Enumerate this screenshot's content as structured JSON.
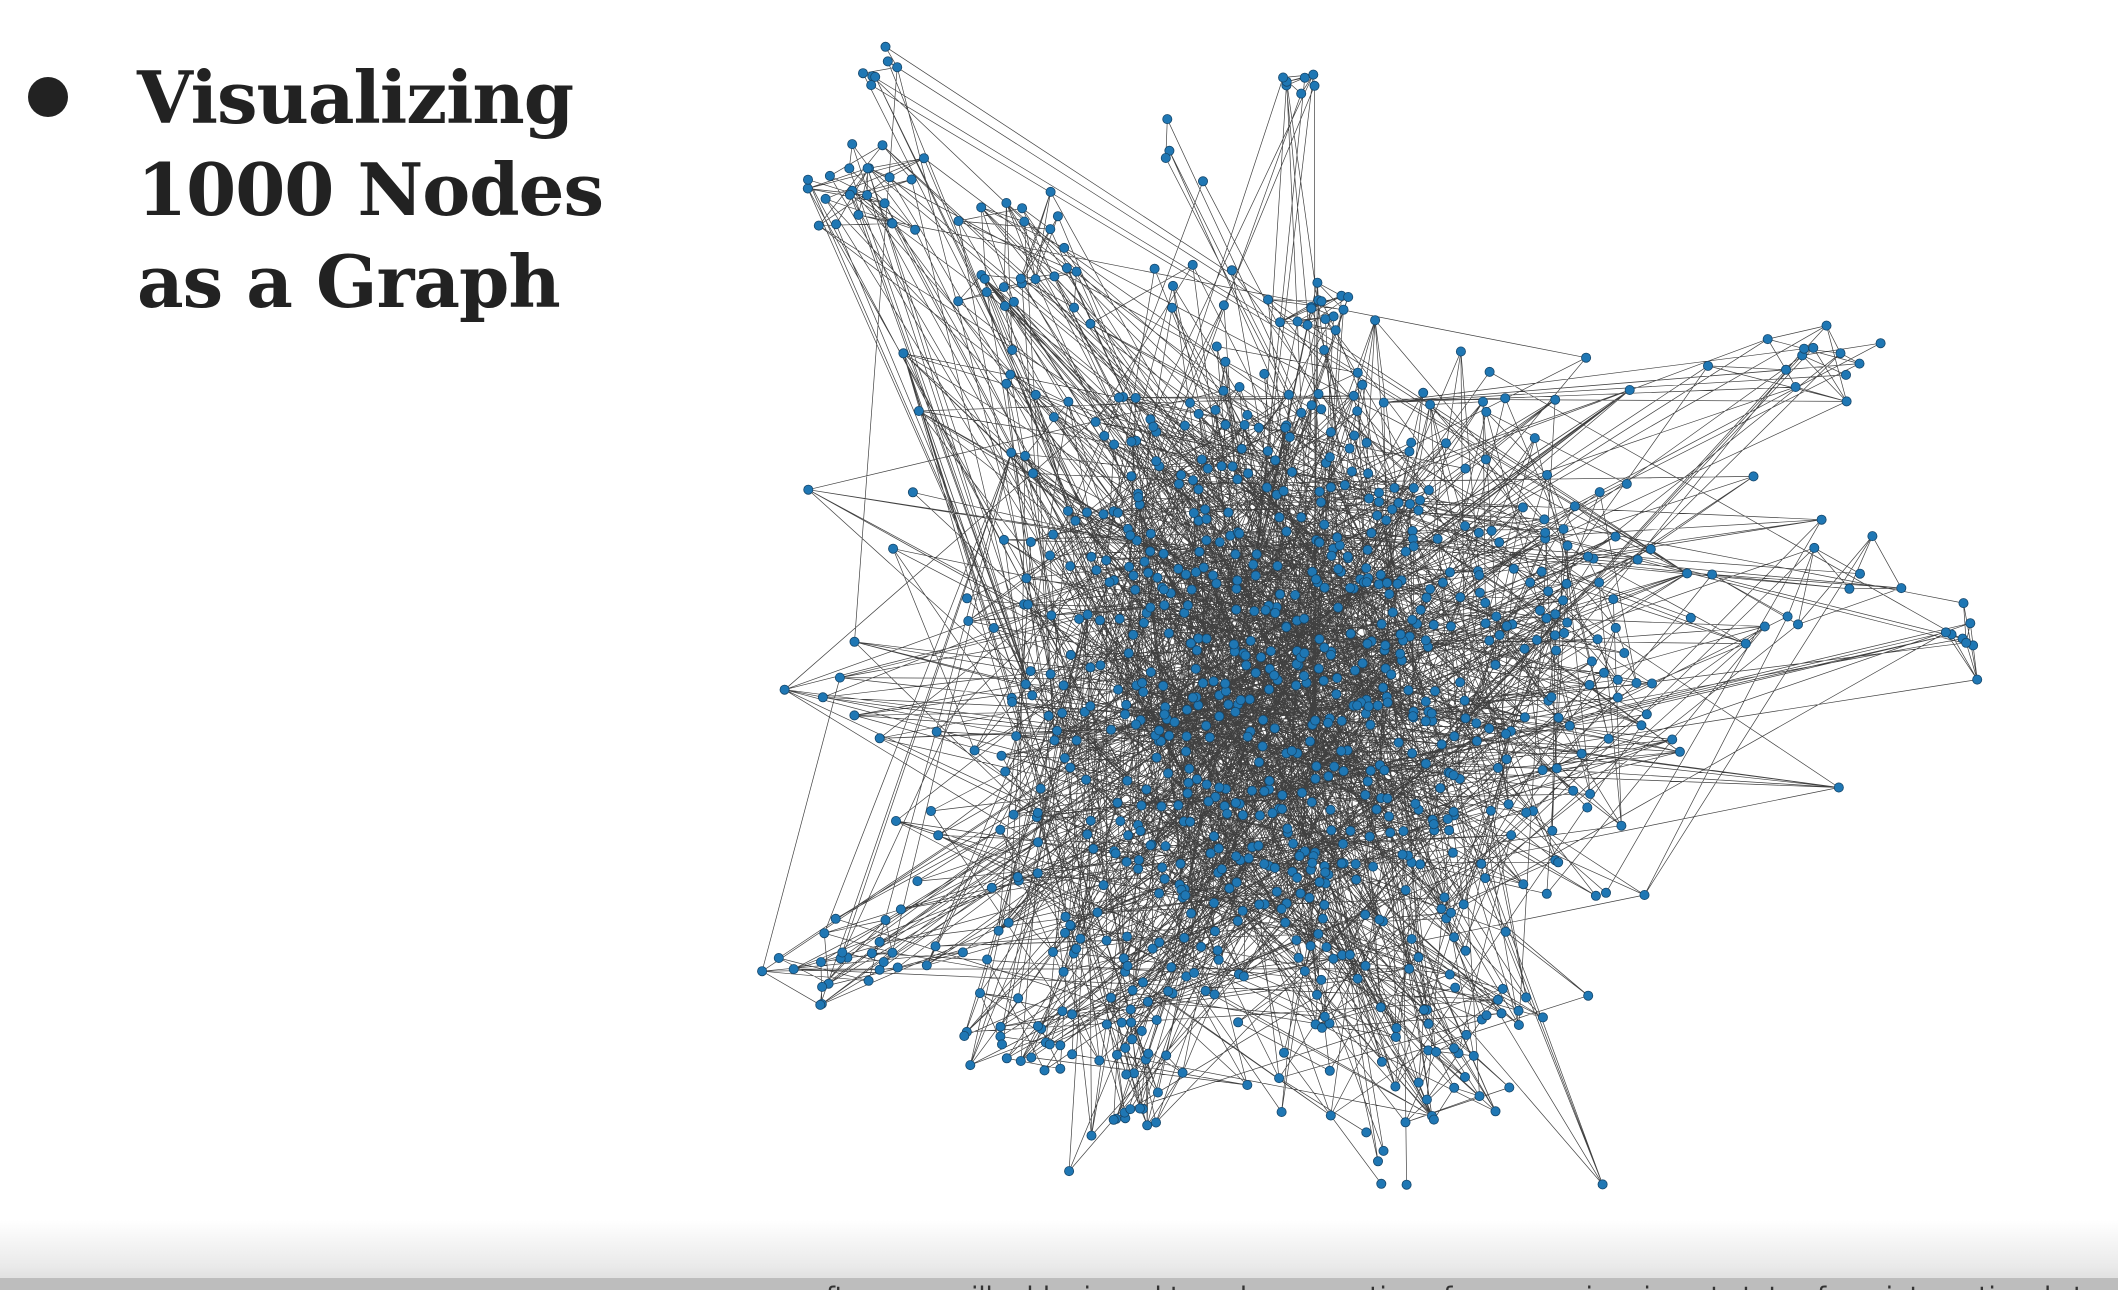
{
  "slide": {
    "title_lines": [
      "Visualizing",
      "1000 Nodes",
      "as a Graph"
    ],
    "bottom_cut_text": "often, you will add mixpool to reduce a portion of your non-immigrant status from international students"
  },
  "diagram": {
    "type": "network-graph",
    "node_count": 1000,
    "node_color": "#1f77b4",
    "edge_color": "#000000"
  }
}
